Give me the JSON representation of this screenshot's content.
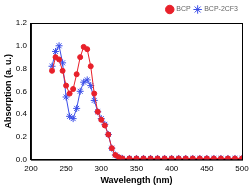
{
  "chart_data": {
    "type": "line",
    "x_label": "Wavelength (nm)",
    "y_label": "Absorption (a. u.)",
    "x": [
      230,
      235,
      240,
      245,
      250,
      255,
      260,
      265,
      270,
      275,
      280,
      285,
      290,
      295,
      300,
      305,
      310,
      315,
      320,
      325,
      330,
      340,
      350,
      360,
      370,
      380,
      390,
      400,
      410,
      420,
      430,
      440,
      450,
      460,
      470,
      480,
      490,
      500
    ],
    "series": [
      {
        "name": "BCP",
        "color": "#e8202a",
        "marker": "circle",
        "values": [
          0.78,
          0.9,
          0.88,
          0.78,
          0.65,
          0.58,
          0.62,
          0.75,
          0.9,
          0.99,
          0.97,
          0.82,
          0.58,
          0.42,
          0.35,
          0.3,
          0.22,
          0.1,
          0.04,
          0.02,
          0.01,
          0.01,
          0.01,
          0.01,
          0.01,
          0.01,
          0.01,
          0.01,
          0.01,
          0.01,
          0.01,
          0.01,
          0.01,
          0.01,
          0.01,
          0.01,
          0.01,
          0.01
        ]
      },
      {
        "name": "BCP-2CF3",
        "color": "#3b4ee8",
        "marker": "star",
        "values": [
          0.82,
          0.95,
          1.0,
          0.85,
          0.55,
          0.38,
          0.36,
          0.45,
          0.6,
          0.68,
          0.7,
          0.65,
          0.52,
          0.42,
          0.36,
          0.31,
          0.22,
          0.1,
          0.04,
          0.02,
          0.01,
          0.01,
          0.01,
          0.01,
          0.01,
          0.01,
          0.01,
          0.01,
          0.01,
          0.01,
          0.01,
          0.01,
          0.01,
          0.01,
          0.01,
          0.01,
          0.01,
          0.01
        ]
      }
    ],
    "xlim": [
      200,
      500
    ],
    "xticks": [
      200,
      250,
      300,
      350,
      400,
      450,
      500
    ],
    "ylim": [
      0,
      1.2
    ],
    "yticks": [
      {
        "value": 0,
        "label": "0.0"
      },
      0.2,
      0.4,
      0.6,
      0.8,
      {
        "value": 1,
        "label": "1.0"
      },
      1.2
    ],
    "grid": false,
    "legend": "upper right"
  }
}
